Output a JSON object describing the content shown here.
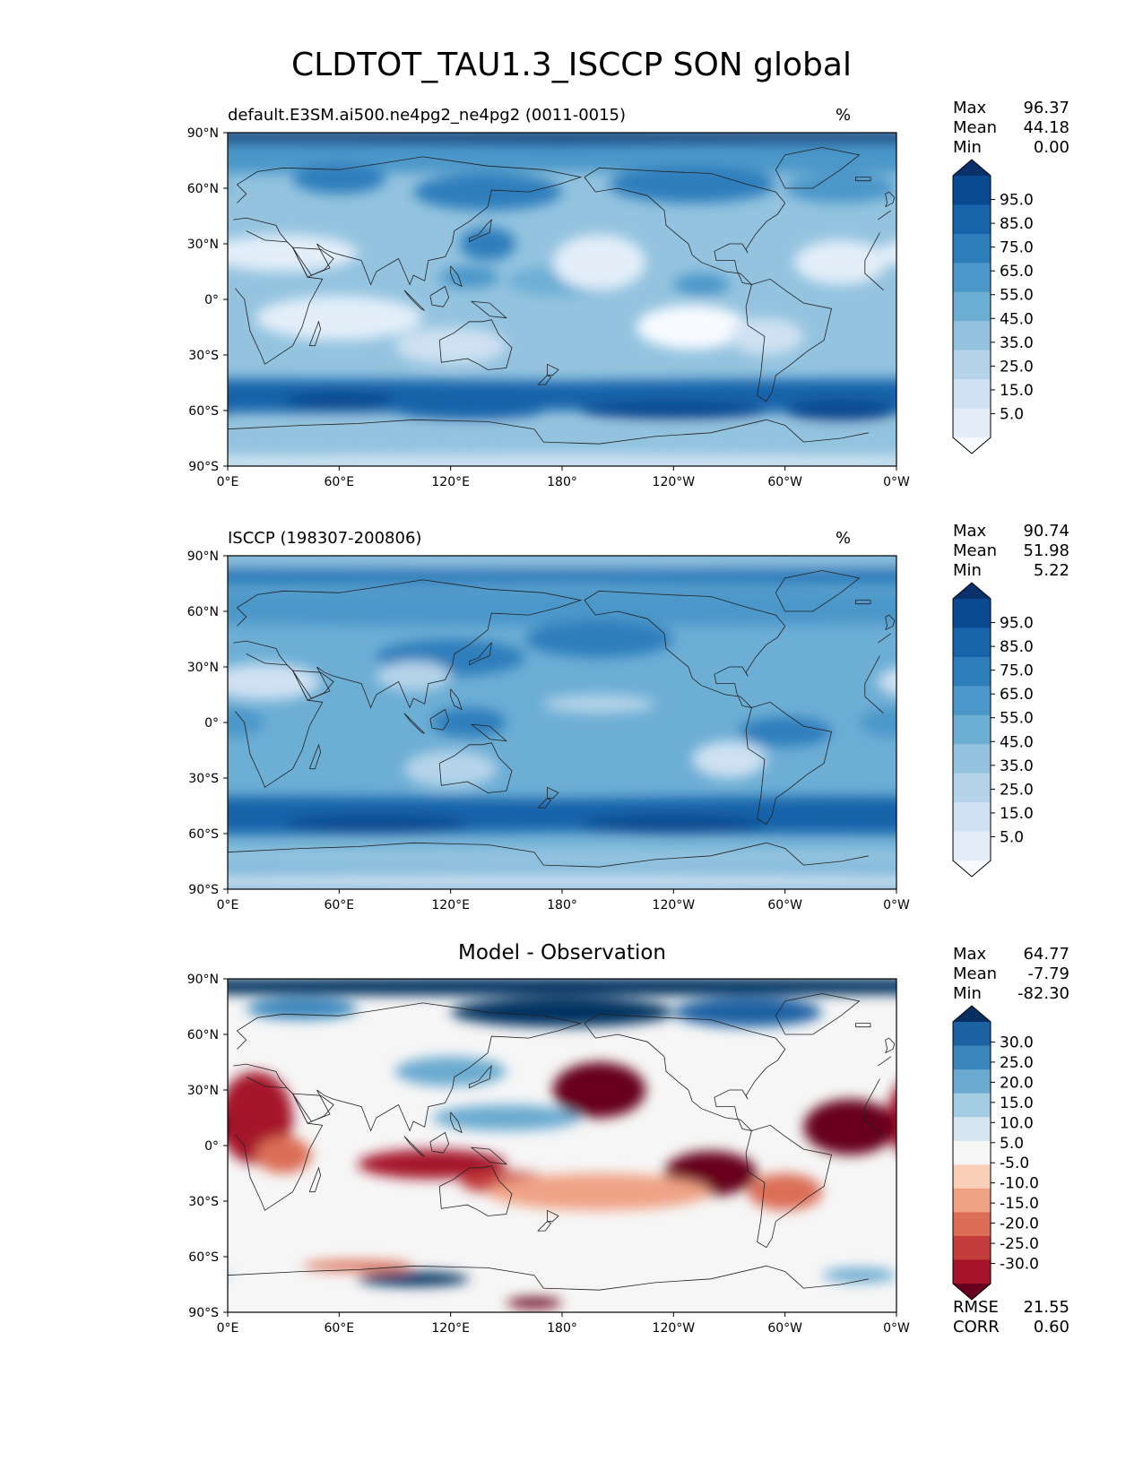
{
  "figure": {
    "title": "CLDTOT_TAU1.3_ISCCP SON global"
  },
  "axes": {
    "lat_ticks": [
      "90°N",
      "60°N",
      "30°N",
      "0°",
      "30°S",
      "60°S",
      "90°S"
    ],
    "lon_ticks": [
      "0°E",
      "60°E",
      "120°E",
      "180°",
      "120°W",
      "60°W",
      "0°W"
    ]
  },
  "panels": [
    {
      "id": "model",
      "title": "default.E3SM.ai500.ne4pg2_ne4pg2 (0011-0015)",
      "units": "%",
      "stats": {
        "max_label": "Max",
        "max": "96.37",
        "mean_label": "Mean",
        "mean": "44.18",
        "min_label": "Min",
        "min": "0.00"
      },
      "colorbar_ticks": [
        "95.0",
        "85.0",
        "75.0",
        "65.0",
        "55.0",
        "45.0",
        "35.0",
        "25.0",
        "15.0",
        "5.0"
      ]
    },
    {
      "id": "obs",
      "title": "ISCCP (198307-200806)",
      "units": "%",
      "stats": {
        "max_label": "Max",
        "max": "90.74",
        "mean_label": "Mean",
        "mean": "51.98",
        "min_label": "Min",
        "min": "5.22"
      },
      "colorbar_ticks": [
        "95.0",
        "85.0",
        "75.0",
        "65.0",
        "55.0",
        "45.0",
        "35.0",
        "25.0",
        "15.0",
        "5.0"
      ]
    },
    {
      "id": "diff",
      "title": "Model - Observation",
      "units": "",
      "stats": {
        "max_label": "Max",
        "max": "64.77",
        "mean_label": "Mean",
        "mean": "-7.79",
        "min_label": "Min",
        "min": "-82.30"
      },
      "colorbar_ticks": [
        "30.0",
        "25.0",
        "20.0",
        "15.0",
        "10.0",
        "5.0",
        "-5.0",
        "-10.0",
        "-15.0",
        "-20.0",
        "-25.0",
        "-30.0"
      ],
      "rmse_label": "RMSE",
      "rmse": "21.55",
      "corr_label": "CORR",
      "corr": "0.60"
    }
  ],
  "colors": {
    "blues": [
      "#f7fbff",
      "#e3eef9",
      "#cfe1f2",
      "#b5d4e9",
      "#93c3df",
      "#6daed5",
      "#4b97c9",
      "#2f7ebc",
      "#1864aa",
      "#0a4a90",
      "#08306b"
    ],
    "diverging": [
      "#67001f",
      "#a51429",
      "#c43c3c",
      "#dc6e57",
      "#f0a285",
      "#fbd0b9",
      "#f6f6f6",
      "#d5e5f0",
      "#a3cbe2",
      "#6aaad0",
      "#3b86bc",
      "#1c61a2",
      "#053061"
    ],
    "coastline": "#222222"
  }
}
